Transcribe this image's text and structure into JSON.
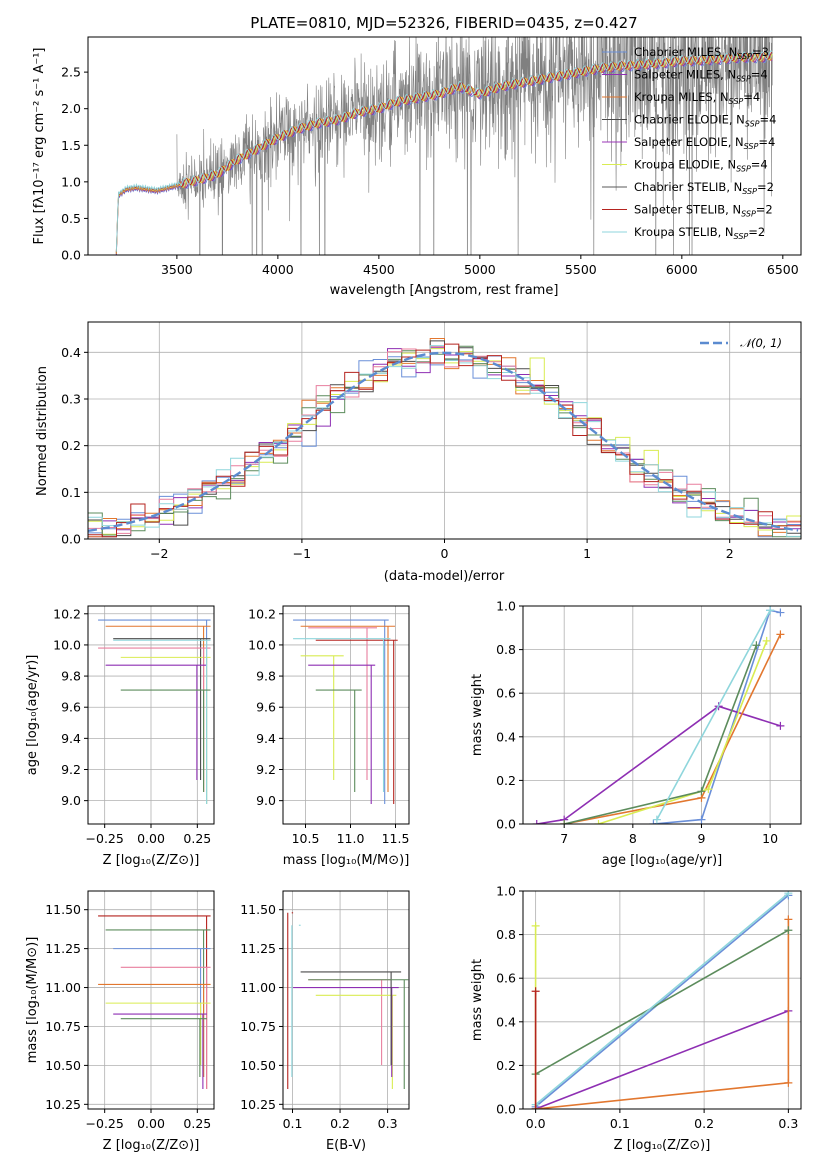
{
  "colors": {
    "chabrier_miles": "#6a8fd8",
    "salpeter_miles": "#8e2fb3",
    "kroupa_miles": "#e2772f",
    "chabrier_elodie": "#4b4b4b",
    "salpeter_elodie": "#9b36b8",
    "kroupa_elodie": "#d9ec52",
    "chabrier_stelib": "#5a5a5a",
    "salpeter_stelib": "#b5231f",
    "kroupa_stelib": "#8fd6dc",
    "green": "#5c8c5c",
    "pink": "#e87f9e",
    "gaussian": "#5b8bd0",
    "data_gray": "#808080"
  },
  "chart_data": [
    {
      "type": "line",
      "title": "PLATE=0810, MJD=52326, FIBERID=0435, z=0.427",
      "xlabel": "wavelength [Angstrom, rest frame]",
      "ylabel": "Flux [fλ10⁻¹⁷ erg cm⁻² s⁻¹ A⁻¹]",
      "xlim": [
        3060,
        6590
      ],
      "ylim": [
        0,
        2.98
      ],
      "xticks": [
        "3500",
        "4000",
        "4500",
        "5000",
        "5500",
        "6000",
        "6500"
      ],
      "yticks": [
        "0.0",
        "0.5",
        "1.0",
        "1.5",
        "2.0",
        "2.5"
      ],
      "grid": false,
      "legend": {
        "placement": "right",
        "entries": [
          {
            "label": "Chabrier MILES, N",
            "sub": "SSP",
            "suffix": "=3",
            "color": "chabrier_miles"
          },
          {
            "label": "Salpeter MILES, N",
            "sub": "SSP",
            "suffix": "=4",
            "color": "salpeter_miles"
          },
          {
            "label": "Kroupa MILES, N",
            "sub": "SSP",
            "suffix": "=4",
            "color": "kroupa_miles"
          },
          {
            "label": "Chabrier ELODIE, N",
            "sub": "SSP",
            "suffix": "=4",
            "color": "chabrier_elodie"
          },
          {
            "label": "Salpeter ELODIE, N",
            "sub": "SSP",
            "suffix": "=4",
            "color": "salpeter_elodie"
          },
          {
            "label": "Kroupa ELODIE, N",
            "sub": "SSP",
            "suffix": "=4",
            "color": "kroupa_elodie"
          },
          {
            "label": "Chabrier STELIB, N",
            "sub": "SSP",
            "suffix": "=2",
            "color": "chabrier_stelib"
          },
          {
            "label": "Salpeter STELIB, N",
            "sub": "SSP",
            "suffix": "=2",
            "color": "salpeter_stelib"
          },
          {
            "label": "Kroupa STELIB, N",
            "sub": "SSP",
            "suffix": "=2",
            "color": "kroupa_stelib"
          }
        ]
      },
      "model_continuum": {
        "x": [
          3200,
          3210,
          3250,
          3300,
          3400,
          3500,
          3600,
          3700,
          3800,
          3900,
          4000,
          4100,
          4200,
          4300,
          4400,
          4500,
          4600,
          4700,
          4800,
          4900,
          5000,
          5100,
          5200,
          5300,
          5400,
          5500,
          5600,
          5700,
          5800,
          5900,
          6000,
          6100,
          6200,
          6300,
          6400,
          6450
        ],
        "y": [
          0.0,
          0.82,
          0.9,
          0.92,
          0.88,
          0.95,
          1.02,
          1.1,
          1.3,
          1.45,
          1.6,
          1.72,
          1.8,
          1.85,
          1.95,
          2.0,
          2.1,
          2.15,
          2.2,
          2.3,
          2.2,
          2.3,
          2.35,
          2.4,
          2.45,
          2.5,
          2.55,
          2.58,
          2.6,
          2.62,
          2.65,
          2.66,
          2.68,
          2.7,
          2.7,
          2.72
        ]
      },
      "data_noise_range": [
        3500,
        6450
      ]
    },
    {
      "type": "line",
      "xlabel": "(data-model)/error",
      "ylabel": "Normed distribution",
      "xlim": [
        -2.5,
        2.5
      ],
      "ylim": [
        0,
        0.465
      ],
      "xticks": [
        "−2",
        "−1",
        "0",
        "1",
        "2"
      ],
      "yticks": [
        "0.0",
        "0.1",
        "0.2",
        "0.3",
        "0.4"
      ],
      "grid": true,
      "legend": {
        "placement": "top-right",
        "entries": [
          {
            "label": "𝒩(0, 1)",
            "color": "gaussian"
          }
        ]
      },
      "gaussian": {
        "mu": 0,
        "sigma": 1
      },
      "histogram_bins": {
        "start": -2.5,
        "width": 0.1,
        "count": 50
      }
    },
    {
      "type": "scatter",
      "xlabel": "Z [log₁₀(Z/Z⊙)]",
      "ylabel": "age  [log₁₀(age/yr)]",
      "xlim": [
        -0.34,
        0.34
      ],
      "ylim": [
        8.85,
        10.25
      ],
      "xticks": [
        "−0.25",
        "0.00",
        "0.25"
      ],
      "yticks": [
        "9.0",
        "9.2",
        "9.4",
        "9.6",
        "9.8",
        "10.0",
        "10.2"
      ],
      "grid": true,
      "points": [
        {
          "x": 0.3,
          "y": 10.16,
          "c": "chabrier_miles"
        },
        {
          "x": 0.3,
          "y": 10.12,
          "c": "kroupa_miles"
        },
        {
          "x": 0.3,
          "y": 10.04,
          "c": "chabrier_elodie"
        },
        {
          "x": 0.3,
          "y": 9.92,
          "c": "kroupa_elodie"
        },
        {
          "x": 0.3,
          "y": 9.98,
          "c": "pink"
        },
        {
          "x": 0.28,
          "y": 9.87,
          "c": "salpeter_miles"
        },
        {
          "x": 0.3,
          "y": 10.03,
          "c": "kroupa_stelib"
        },
        {
          "x": 0.3,
          "y": 9.71,
          "c": "green"
        }
      ]
    },
    {
      "type": "scatter",
      "xlabel": "mass [log₁₀(M/M⊙)]",
      "xlim": [
        10.25,
        11.65
      ],
      "ylim": [
        8.85,
        10.25
      ],
      "xticks": [
        "10.5",
        "11.0",
        "11.5"
      ],
      "yticks": [
        "9.0",
        "9.2",
        "9.4",
        "9.6",
        "9.8",
        "10.0",
        "10.2"
      ],
      "grid": true,
      "points": [
        {
          "x": 11.38,
          "y": 10.16,
          "c": "chabrier_miles"
        },
        {
          "x": 11.45,
          "y": 10.12,
          "c": "kroupa_miles"
        },
        {
          "x": 11.25,
          "y": 10.11,
          "c": "pink"
        },
        {
          "x": 11.48,
          "y": 10.03,
          "c": "salpeter_stelib"
        },
        {
          "x": 11.4,
          "y": 10.04,
          "c": "kroupa_stelib"
        },
        {
          "x": 10.88,
          "y": 9.93,
          "c": "kroupa_elodie"
        },
        {
          "x": 11.23,
          "y": 9.87,
          "c": "salpeter_miles"
        },
        {
          "x": 11.08,
          "y": 9.71,
          "c": "green"
        }
      ]
    },
    {
      "type": "line",
      "xlabel": "age  [log₁₀(age/yr)]",
      "ylabel": "mass weight",
      "xlim": [
        6.4,
        10.45
      ],
      "ylim": [
        0,
        1.0
      ],
      "xticks": [
        "7",
        "8",
        "9",
        "10"
      ],
      "yticks": [
        "0.0",
        "0.2",
        "0.4",
        "0.6",
        "0.8",
        "1.0"
      ],
      "grid": true,
      "series": [
        {
          "c": "chabrier_miles",
          "x": [
            8.3,
            9.0,
            10.0,
            10.15
          ],
          "y": [
            0.0,
            0.02,
            0.98,
            0.97
          ]
        },
        {
          "c": "salpeter_miles",
          "x": [
            6.6,
            7.0,
            9.25,
            10.15
          ],
          "y": [
            0.0,
            0.02,
            0.54,
            0.45
          ]
        },
        {
          "c": "kroupa_miles",
          "x": [
            7.0,
            9.0,
            10.15
          ],
          "y": [
            0.0,
            0.12,
            0.87
          ]
        },
        {
          "c": "kroupa_elodie",
          "x": [
            7.5,
            9.1,
            9.95
          ],
          "y": [
            0.0,
            0.16,
            0.84
          ]
        },
        {
          "c": "green",
          "x": [
            7.0,
            9.0,
            9.8
          ],
          "y": [
            0.0,
            0.15,
            0.82
          ]
        },
        {
          "c": "kroupa_stelib",
          "x": [
            8.35,
            10.0
          ],
          "y": [
            0.02,
            0.98
          ]
        }
      ]
    },
    {
      "type": "scatter",
      "xlabel": "Z [log₁₀(Z/Z⊙)]",
      "ylabel": "mass [log₁₀(M/M⊙)]",
      "xlim": [
        -0.34,
        0.34
      ],
      "ylim": [
        10.22,
        11.62
      ],
      "xticks": [
        "−0.25",
        "0.00",
        "0.25"
      ],
      "yticks": [
        "10.25",
        "10.50",
        "10.75",
        "11.00",
        "11.25",
        "11.50"
      ],
      "grid": true,
      "points": [
        {
          "x": 0.3,
          "y": 11.46,
          "c": "salpeter_stelib"
        },
        {
          "x": 0.3,
          "y": 11.37,
          "c": "green"
        },
        {
          "x": 0.3,
          "y": 11.25,
          "c": "chabrier_miles"
        },
        {
          "x": 0.3,
          "y": 11.13,
          "c": "pink"
        },
        {
          "x": 0.3,
          "y": 11.02,
          "c": "kroupa_miles"
        },
        {
          "x": 0.3,
          "y": 10.9,
          "c": "kroupa_elodie"
        },
        {
          "x": 0.28,
          "y": 10.83,
          "c": "salpeter_miles"
        },
        {
          "x": 0.28,
          "y": 10.8,
          "c": "green"
        }
      ]
    },
    {
      "type": "scatter",
      "xlabel": "E(B-V)",
      "xlim": [
        0.08,
        0.345
      ],
      "ylim": [
        10.22,
        11.62
      ],
      "xticks": [
        "0.1",
        "0.2",
        "0.3"
      ],
      "yticks": [
        "11.50",
        "11.25",
        "11.00",
        "10.75",
        "10.50",
        "10.25"
      ],
      "grid": true,
      "points": [
        {
          "x": 0.09,
          "y": 11.48,
          "c": "salpeter_stelib"
        },
        {
          "x": 0.105,
          "y": 11.4,
          "c": "kroupa_stelib"
        },
        {
          "x": 0.3,
          "y": 11.05,
          "c": "pink"
        },
        {
          "x": 0.31,
          "y": 10.95,
          "c": "kroupa_elodie"
        },
        {
          "x": 0.315,
          "y": 11.0,
          "c": "salpeter_miles"
        },
        {
          "x": 0.32,
          "y": 11.1,
          "c": "chabrier_elodie"
        },
        {
          "x": 0.335,
          "y": 11.05,
          "c": "green"
        }
      ]
    },
    {
      "type": "line",
      "xlabel": "Z [log₁₀(Z/Z⊙)]",
      "ylabel": "mass weight",
      "xlim": [
        -0.015,
        0.315
      ],
      "ylim": [
        0,
        1.0
      ],
      "xticks": [
        "0.0",
        "0.1",
        "0.2",
        "0.3"
      ],
      "yticks": [
        "0.0",
        "0.2",
        "0.4",
        "0.6",
        "0.8",
        "1.0"
      ],
      "grid": true,
      "series": [
        {
          "c": "chabrier_miles",
          "x": [
            0.0,
            0.3
          ],
          "y": [
            0.01,
            0.98
          ]
        },
        {
          "c": "salpeter_miles",
          "x": [
            0.0,
            0.3
          ],
          "y": [
            0.0,
            0.45
          ]
        },
        {
          "c": "kroupa_miles",
          "x": [
            0.0,
            0.3,
            0.3
          ],
          "y": [
            0.0,
            0.12,
            0.87
          ]
        },
        {
          "c": "green",
          "x": [
            0.0,
            0.3
          ],
          "y": [
            0.16,
            0.82
          ]
        },
        {
          "c": "kroupa_stelib",
          "x": [
            0.0,
            0.3
          ],
          "y": [
            0.02,
            0.99
          ]
        },
        {
          "c": "kroupa_elodie",
          "x": [
            0.0,
            0.0
          ],
          "y": [
            0.0,
            0.84
          ]
        },
        {
          "c": "salpeter_stelib",
          "x": [
            0.0,
            0.0
          ],
          "y": [
            0.0,
            0.54
          ]
        }
      ]
    }
  ]
}
